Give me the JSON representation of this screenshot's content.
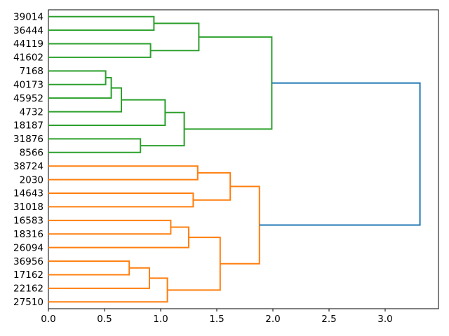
{
  "figure": {
    "background": "#ffffff",
    "title": ""
  },
  "chart_data": {
    "type": "dendrogram",
    "orientation": "right",
    "description": "Horizontal dendrogram, leaves on left with numeric labels, root on right",
    "n_leaves": 22,
    "grid": false,
    "xlim": [
      0,
      3.475
    ],
    "x_ticks": [
      "0.0",
      "0.5",
      "1.0",
      "1.5",
      "2.0",
      "2.5",
      "3.0"
    ],
    "x_tick_values": [
      0,
      0.5,
      1.0,
      1.5,
      2.0,
      2.5,
      3.0
    ],
    "colors": {
      "green": "#2ca02c",
      "orange": "#ff7f0e",
      "blue": "#1f77b4",
      "spine": "#000000",
      "text": "#000000"
    },
    "leaf_order": [
      "39014",
      "36444",
      "44119",
      "41602",
      "7168",
      "40173",
      "45952",
      "4732",
      "18187",
      "31876",
      "8566",
      "38724",
      "2030",
      "14643",
      "31018",
      "16583",
      "18316",
      "26094",
      "36956",
      "17162",
      "22162",
      "27510"
    ],
    "tree": {
      "d": 3.31,
      "color": "blue",
      "children": [
        {
          "d": 1.99,
          "color": "green",
          "children": [
            {
              "d": 1.34,
              "color": "green",
              "children": [
                {
                  "d": 0.94,
                  "color": "green",
                  "children": [
                    {
                      "leaf": "39014"
                    },
                    {
                      "leaf": "36444"
                    }
                  ]
                },
                {
                  "d": 0.91,
                  "color": "green",
                  "children": [
                    {
                      "leaf": "44119"
                    },
                    {
                      "leaf": "41602"
                    }
                  ]
                }
              ]
            },
            {
              "d": 1.21,
              "color": "green",
              "children": [
                {
                  "d": 1.04,
                  "color": "green",
                  "children": [
                    {
                      "d": 0.65,
                      "color": "green",
                      "children": [
                        {
                          "d": 0.56,
                          "color": "green",
                          "children": [
                            {
                              "d": 0.51,
                              "color": "green",
                              "children": [
                                {
                                  "leaf": "7168"
                                },
                                {
                                  "leaf": "40173"
                                }
                              ]
                            },
                            {
                              "leaf": "45952"
                            }
                          ]
                        },
                        {
                          "leaf": "4732"
                        }
                      ]
                    },
                    {
                      "leaf": "18187"
                    }
                  ]
                },
                {
                  "d": 0.82,
                  "color": "green",
                  "children": [
                    {
                      "leaf": "31876"
                    },
                    {
                      "leaf": "8566"
                    }
                  ]
                }
              ]
            }
          ]
        },
        {
          "d": 1.88,
          "color": "orange",
          "children": [
            {
              "d": 1.62,
              "color": "orange",
              "children": [
                {
                  "d": 1.33,
                  "color": "orange",
                  "children": [
                    {
                      "leaf": "38724"
                    },
                    {
                      "leaf": "2030"
                    }
                  ]
                },
                {
                  "d": 1.29,
                  "color": "orange",
                  "children": [
                    {
                      "leaf": "14643"
                    },
                    {
                      "leaf": "31018"
                    }
                  ]
                }
              ]
            },
            {
              "d": 1.53,
              "color": "orange",
              "children": [
                {
                  "d": 1.25,
                  "color": "orange",
                  "children": [
                    {
                      "d": 1.09,
                      "color": "orange",
                      "children": [
                        {
                          "leaf": "16583"
                        },
                        {
                          "leaf": "18316"
                        }
                      ]
                    },
                    {
                      "leaf": "26094"
                    }
                  ]
                },
                {
                  "d": 1.06,
                  "color": "orange",
                  "children": [
                    {
                      "d": 0.9,
                      "color": "orange",
                      "children": [
                        {
                          "d": 0.72,
                          "color": "orange",
                          "children": [
                            {
                              "leaf": "36956"
                            },
                            {
                              "leaf": "17162"
                            }
                          ]
                        },
                        {
                          "leaf": "22162"
                        }
                      ]
                    },
                    {
                      "leaf": "27510"
                    }
                  ]
                }
              ]
            }
          ]
        }
      ]
    }
  }
}
